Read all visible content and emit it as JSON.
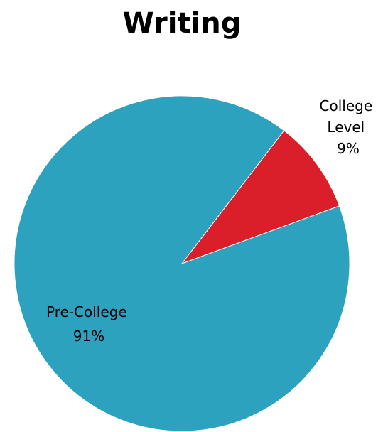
{
  "chart_data": {
    "type": "pie",
    "title": "Writing",
    "slices": [
      {
        "label_lines": [
          "College",
          "Level"
        ],
        "percent_label": "9%",
        "value": 9,
        "color": "#db1f2a"
      },
      {
        "label_lines": [
          "Pre-College"
        ],
        "percent_label": "91%",
        "value": 91,
        "color": "#2ca2bf"
      }
    ],
    "legend": "none"
  }
}
